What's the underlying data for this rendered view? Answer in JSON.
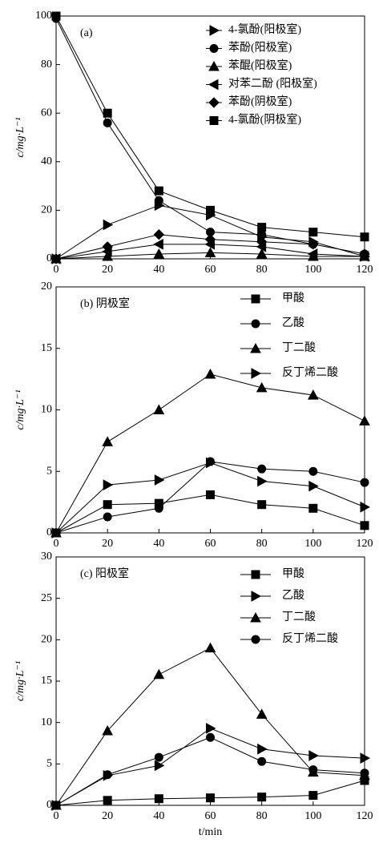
{
  "chart_data": [
    {
      "type": "line",
      "label": "(a)",
      "ylabel": "c/mg·L⁻¹",
      "color": "#000000",
      "legend": "upper right",
      "x": [
        0,
        20,
        40,
        60,
        80,
        100,
        120
      ],
      "xlim": [
        0,
        120
      ],
      "xticks": [
        0,
        20,
        40,
        60,
        80,
        100,
        120
      ],
      "ylim": [
        0,
        100
      ],
      "yticks": [
        0,
        20,
        40,
        60,
        80,
        100
      ],
      "series": [
        {
          "name": "4-氯酚(阳极室)",
          "marker": "triangle-right",
          "values": [
            0,
            14,
            22,
            18,
            9,
            7,
            1
          ]
        },
        {
          "name": "苯酚(阳极室)",
          "marker": "circle",
          "values": [
            99,
            56,
            24,
            11,
            10,
            6,
            2
          ]
        },
        {
          "name": "苯醌(阳极室)",
          "marker": "triangle-up",
          "values": [
            0,
            1,
            2,
            2.5,
            2,
            1,
            1
          ]
        },
        {
          "name": "对苯二酚 (阳极室)",
          "marker": "triangle-left",
          "values": [
            0,
            3,
            6,
            6,
            5,
            2,
            1
          ]
        },
        {
          "name": "苯酚(阴极室)",
          "marker": "diamond",
          "values": [
            0,
            5,
            10,
            8,
            7,
            6,
            2
          ]
        },
        {
          "name": "4-氯酚(阴极室)",
          "marker": "square",
          "values": [
            100,
            60,
            28,
            20,
            13,
            11,
            9
          ]
        }
      ]
    },
    {
      "type": "line",
      "label": "(b) 阴极室",
      "ylabel": "c/mg·L⁻¹",
      "color": "#000000",
      "legend": "upper right",
      "x": [
        0,
        20,
        40,
        60,
        80,
        100,
        120
      ],
      "xlim": [
        0,
        120
      ],
      "xticks": [
        0,
        20,
        40,
        60,
        80,
        100,
        120
      ],
      "ylim": [
        0,
        20
      ],
      "yticks": [
        0,
        5,
        10,
        15,
        20
      ],
      "series": [
        {
          "name": "甲酸",
          "marker": "square",
          "values": [
            0,
            2.3,
            2.4,
            3.1,
            2.3,
            2.0,
            0.6
          ]
        },
        {
          "name": "乙酸",
          "marker": "circle",
          "values": [
            0,
            1.3,
            2.0,
            5.8,
            5.2,
            5.0,
            4.1
          ]
        },
        {
          "name": "丁二酸",
          "marker": "triangle-up",
          "values": [
            0,
            7.4,
            10,
            12.9,
            11.8,
            11.2,
            9.1
          ]
        },
        {
          "name": "反丁烯二酸",
          "marker": "triangle-right",
          "values": [
            0,
            3.9,
            4.3,
            5.7,
            4.2,
            3.8,
            2.1
          ]
        }
      ]
    },
    {
      "type": "line",
      "label": "(c) 阳极室",
      "ylabel": "c/mg·L⁻¹",
      "xlabel": "t/min",
      "color": "#000000",
      "legend": "upper right",
      "x": [
        0,
        20,
        40,
        60,
        80,
        100,
        120
      ],
      "xlim": [
        0,
        120
      ],
      "xticks": [
        0,
        20,
        40,
        60,
        80,
        100,
        120
      ],
      "ylim": [
        0,
        30
      ],
      "yticks": [
        0,
        5,
        10,
        15,
        20,
        25,
        30
      ],
      "series": [
        {
          "name": "甲酸",
          "marker": "square",
          "values": [
            0,
            0.6,
            0.8,
            0.9,
            1.0,
            1.2,
            3.0
          ]
        },
        {
          "name": "乙酸",
          "marker": "triangle-right",
          "values": [
            0,
            3.6,
            4.8,
            9.3,
            6.8,
            6.0,
            5.7
          ]
        },
        {
          "name": "丁二酸",
          "marker": "triangle-up",
          "values": [
            0,
            9,
            15.8,
            19,
            11,
            4.0,
            3.6
          ]
        },
        {
          "name": "反丁烯二酸",
          "marker": "circle",
          "values": [
            0,
            3.7,
            5.8,
            8.2,
            5.3,
            4.3,
            3.9
          ]
        }
      ]
    }
  ]
}
